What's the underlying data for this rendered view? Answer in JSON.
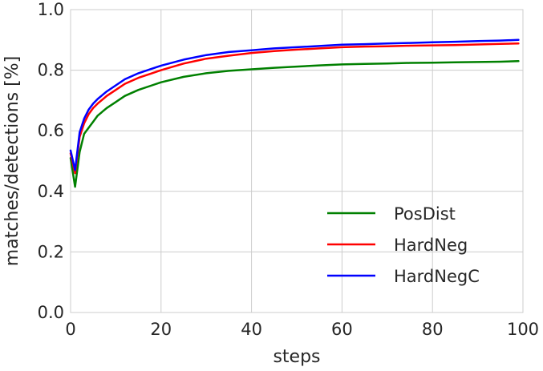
{
  "chart_data": {
    "type": "line",
    "title": "",
    "xlabel": "steps",
    "ylabel": "matches/detections [%]",
    "xlim": [
      0,
      100
    ],
    "ylim": [
      0.0,
      1.0
    ],
    "xticks": [
      "0",
      "20",
      "40",
      "60",
      "80",
      "100"
    ],
    "yticks": [
      "0.0",
      "0.2",
      "0.4",
      "0.6",
      "0.8",
      "1.0"
    ],
    "grid": true,
    "legend_position": "lower-right",
    "x": [
      0,
      1,
      2,
      3,
      4,
      5,
      6,
      8,
      10,
      12,
      15,
      18,
      20,
      25,
      30,
      35,
      40,
      45,
      50,
      55,
      60,
      65,
      70,
      75,
      80,
      85,
      90,
      95,
      99
    ],
    "series": [
      {
        "name": "PosDist",
        "color": "#008000",
        "values": [
          0.51,
          0.415,
          0.53,
          0.59,
          0.61,
          0.63,
          0.65,
          0.675,
          0.695,
          0.715,
          0.735,
          0.75,
          0.76,
          0.778,
          0.79,
          0.798,
          0.803,
          0.808,
          0.812,
          0.816,
          0.819,
          0.821,
          0.822,
          0.824,
          0.825,
          0.826,
          0.827,
          0.828,
          0.83
        ]
      },
      {
        "name": "HardNeg",
        "color": "#ff0000",
        "values": [
          0.525,
          0.46,
          0.58,
          0.625,
          0.655,
          0.675,
          0.69,
          0.715,
          0.735,
          0.755,
          0.775,
          0.79,
          0.8,
          0.822,
          0.838,
          0.848,
          0.857,
          0.863,
          0.868,
          0.872,
          0.876,
          0.878,
          0.879,
          0.881,
          0.882,
          0.883,
          0.885,
          0.887,
          0.888
        ]
      },
      {
        "name": "HardNegC",
        "color": "#0000ff",
        "values": [
          0.535,
          0.47,
          0.595,
          0.64,
          0.67,
          0.69,
          0.705,
          0.73,
          0.75,
          0.77,
          0.79,
          0.805,
          0.815,
          0.835,
          0.85,
          0.86,
          0.866,
          0.872,
          0.876,
          0.88,
          0.884,
          0.886,
          0.888,
          0.89,
          0.892,
          0.894,
          0.896,
          0.898,
          0.9
        ]
      }
    ]
  }
}
